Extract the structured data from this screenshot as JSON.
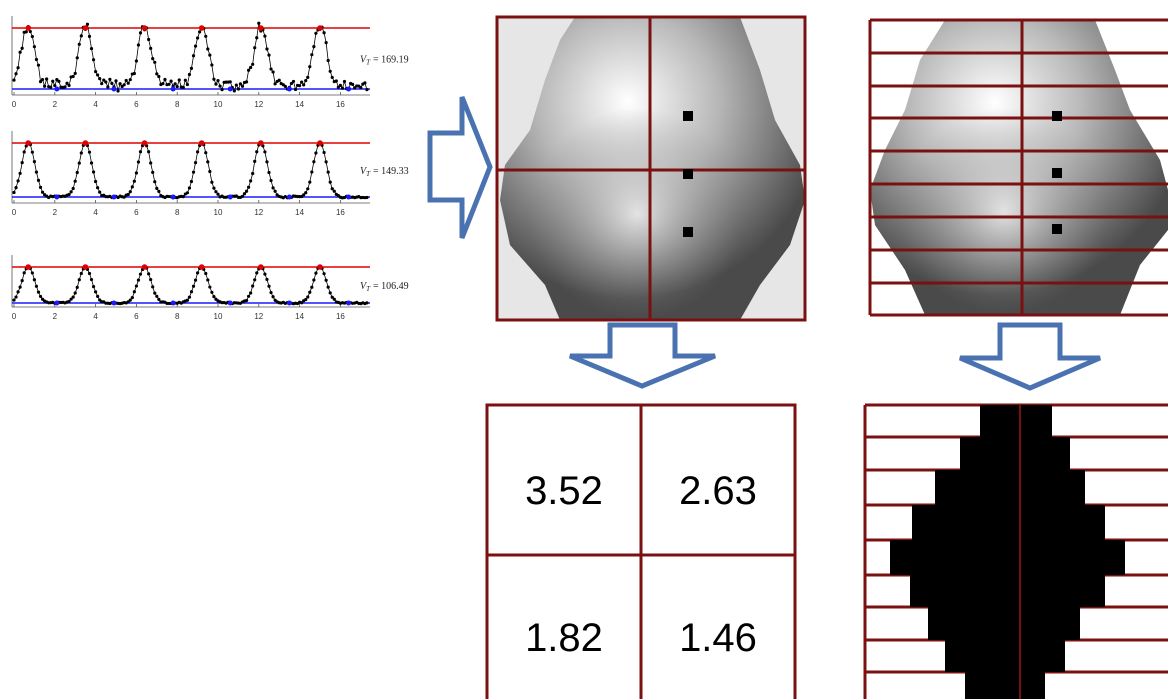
{
  "panels": [
    {
      "vt": {
        "symbol": "V",
        "sub": "T",
        "rest": "= 169.19"
      },
      "x_ticks": [
        0,
        2,
        4,
        6,
        8,
        10,
        12,
        14,
        16
      ]
    },
    {
      "vt": {
        "symbol": "V",
        "sub": "T",
        "rest": "= 149.33"
      },
      "x_ticks": [
        0,
        2,
        4,
        6,
        8,
        10,
        12,
        14,
        16
      ]
    },
    {
      "vt": {
        "symbol": "V",
        "sub": "T",
        "rest": "= 106.49"
      },
      "x_ticks": [
        0,
        2,
        4,
        6,
        8,
        10,
        12,
        14,
        16
      ]
    }
  ],
  "table": {
    "rows": [
      [
        "3.52",
        "2.63"
      ],
      [
        "1.82",
        "1.46"
      ]
    ]
  }
}
